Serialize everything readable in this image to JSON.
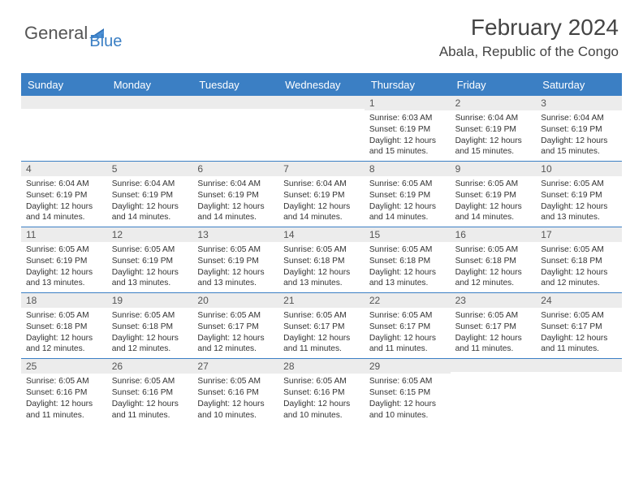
{
  "logo": {
    "text1": "General",
    "text2": "Blue"
  },
  "title": "February 2024",
  "location": "Abala, Republic of the Congo",
  "colors": {
    "accent": "#3b7fc4",
    "dayStripe": "#ececec",
    "text": "#333333",
    "bg": "#ffffff"
  },
  "daysOfWeek": [
    "Sunday",
    "Monday",
    "Tuesday",
    "Wednesday",
    "Thursday",
    "Friday",
    "Saturday"
  ],
  "weeks": [
    [
      {
        "n": "",
        "sr": "",
        "ss": "",
        "dl": ""
      },
      {
        "n": "",
        "sr": "",
        "ss": "",
        "dl": ""
      },
      {
        "n": "",
        "sr": "",
        "ss": "",
        "dl": ""
      },
      {
        "n": "",
        "sr": "",
        "ss": "",
        "dl": ""
      },
      {
        "n": "1",
        "sr": "6:03 AM",
        "ss": "6:19 PM",
        "dl": "12 hours and 15 minutes."
      },
      {
        "n": "2",
        "sr": "6:04 AM",
        "ss": "6:19 PM",
        "dl": "12 hours and 15 minutes."
      },
      {
        "n": "3",
        "sr": "6:04 AM",
        "ss": "6:19 PM",
        "dl": "12 hours and 15 minutes."
      }
    ],
    [
      {
        "n": "4",
        "sr": "6:04 AM",
        "ss": "6:19 PM",
        "dl": "12 hours and 14 minutes."
      },
      {
        "n": "5",
        "sr": "6:04 AM",
        "ss": "6:19 PM",
        "dl": "12 hours and 14 minutes."
      },
      {
        "n": "6",
        "sr": "6:04 AM",
        "ss": "6:19 PM",
        "dl": "12 hours and 14 minutes."
      },
      {
        "n": "7",
        "sr": "6:04 AM",
        "ss": "6:19 PM",
        "dl": "12 hours and 14 minutes."
      },
      {
        "n": "8",
        "sr": "6:05 AM",
        "ss": "6:19 PM",
        "dl": "12 hours and 14 minutes."
      },
      {
        "n": "9",
        "sr": "6:05 AM",
        "ss": "6:19 PM",
        "dl": "12 hours and 14 minutes."
      },
      {
        "n": "10",
        "sr": "6:05 AM",
        "ss": "6:19 PM",
        "dl": "12 hours and 13 minutes."
      }
    ],
    [
      {
        "n": "11",
        "sr": "6:05 AM",
        "ss": "6:19 PM",
        "dl": "12 hours and 13 minutes."
      },
      {
        "n": "12",
        "sr": "6:05 AM",
        "ss": "6:19 PM",
        "dl": "12 hours and 13 minutes."
      },
      {
        "n": "13",
        "sr": "6:05 AM",
        "ss": "6:19 PM",
        "dl": "12 hours and 13 minutes."
      },
      {
        "n": "14",
        "sr": "6:05 AM",
        "ss": "6:18 PM",
        "dl": "12 hours and 13 minutes."
      },
      {
        "n": "15",
        "sr": "6:05 AM",
        "ss": "6:18 PM",
        "dl": "12 hours and 13 minutes."
      },
      {
        "n": "16",
        "sr": "6:05 AM",
        "ss": "6:18 PM",
        "dl": "12 hours and 12 minutes."
      },
      {
        "n": "17",
        "sr": "6:05 AM",
        "ss": "6:18 PM",
        "dl": "12 hours and 12 minutes."
      }
    ],
    [
      {
        "n": "18",
        "sr": "6:05 AM",
        "ss": "6:18 PM",
        "dl": "12 hours and 12 minutes."
      },
      {
        "n": "19",
        "sr": "6:05 AM",
        "ss": "6:18 PM",
        "dl": "12 hours and 12 minutes."
      },
      {
        "n": "20",
        "sr": "6:05 AM",
        "ss": "6:17 PM",
        "dl": "12 hours and 12 minutes."
      },
      {
        "n": "21",
        "sr": "6:05 AM",
        "ss": "6:17 PM",
        "dl": "12 hours and 11 minutes."
      },
      {
        "n": "22",
        "sr": "6:05 AM",
        "ss": "6:17 PM",
        "dl": "12 hours and 11 minutes."
      },
      {
        "n": "23",
        "sr": "6:05 AM",
        "ss": "6:17 PM",
        "dl": "12 hours and 11 minutes."
      },
      {
        "n": "24",
        "sr": "6:05 AM",
        "ss": "6:17 PM",
        "dl": "12 hours and 11 minutes."
      }
    ],
    [
      {
        "n": "25",
        "sr": "6:05 AM",
        "ss": "6:16 PM",
        "dl": "12 hours and 11 minutes."
      },
      {
        "n": "26",
        "sr": "6:05 AM",
        "ss": "6:16 PM",
        "dl": "12 hours and 11 minutes."
      },
      {
        "n": "27",
        "sr": "6:05 AM",
        "ss": "6:16 PM",
        "dl": "12 hours and 10 minutes."
      },
      {
        "n": "28",
        "sr": "6:05 AM",
        "ss": "6:16 PM",
        "dl": "12 hours and 10 minutes."
      },
      {
        "n": "29",
        "sr": "6:05 AM",
        "ss": "6:15 PM",
        "dl": "12 hours and 10 minutes."
      },
      {
        "n": "",
        "sr": "",
        "ss": "",
        "dl": ""
      },
      {
        "n": "",
        "sr": "",
        "ss": "",
        "dl": ""
      }
    ]
  ],
  "labels": {
    "sunrise": "Sunrise: ",
    "sunset": "Sunset: ",
    "daylight": "Daylight: "
  }
}
